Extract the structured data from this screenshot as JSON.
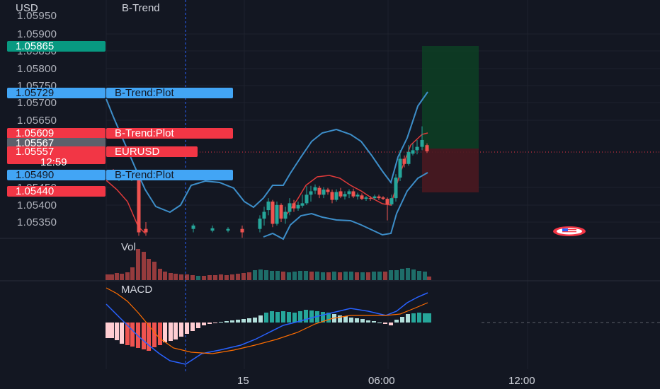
{
  "header": {
    "currency": "USD",
    "indicator": "B-Trend"
  },
  "price_axis": {
    "ticks": [
      "1.05950",
      "1.05900",
      "1.05850",
      "1.05800",
      "1.05750",
      "1.05700",
      "1.05650",
      "1.05450",
      "1.05400",
      "1.05350"
    ]
  },
  "price_tags": {
    "take_profit": "1.05865",
    "upper_band": "1.05729",
    "upper_band_label": "B-Trend:Plot",
    "mid_band": "1.05609",
    "mid_band_label": "B-Trend:Plot",
    "entry": "1.05567",
    "last_price": "1.05557",
    "symbol": "EURUSD",
    "countdown": "12:59",
    "lower_band": "1.05490",
    "lower_band_label": "B-Trend:Plot",
    "stop_loss": "1.05440"
  },
  "panes": {
    "volume": "Vol",
    "macd": "MACD"
  },
  "time_axis": {
    "labels": [
      "15",
      "06:00",
      "12:00"
    ]
  },
  "colors": {
    "bg": "#131722",
    "up": "#26a69a",
    "down": "#ef5350",
    "band": "#3d8ec9",
    "mid_line": "#e03a3a",
    "macd_line": "#2962ff",
    "signal_line": "#ff6d00",
    "tag_blue": "#42a5f5",
    "tag_red": "#f23645",
    "tag_green": "#089981",
    "tag_gray": "#5d606b",
    "profit_zone": "#0d3d24",
    "loss_zone": "#4a1820"
  },
  "icons": {
    "flag": "us-flag-icon"
  }
}
